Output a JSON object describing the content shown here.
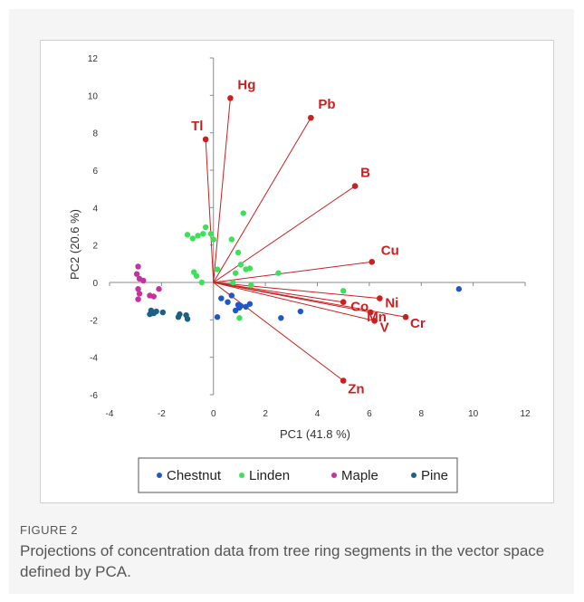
{
  "figure": {
    "label": "FIGURE 2",
    "caption": "Projections of concentration data from tree ring segments in the vector space defined by PCA."
  },
  "chart_data": {
    "type": "scatter",
    "xlabel": "PC1 (41.8 %)",
    "ylabel": "PC2 (20.6 %)",
    "xlim": [
      -4,
      12
    ],
    "ylim": [
      -6,
      12
    ],
    "xticks": [
      -4,
      -2,
      0,
      2,
      4,
      6,
      8,
      10,
      12
    ],
    "yticks": [
      -6,
      -4,
      -2,
      0,
      2,
      4,
      6,
      8,
      10,
      12
    ],
    "grid": false,
    "legend_position": "bottom",
    "loadings_color": "#cc1f1f",
    "loadings": [
      {
        "label": "Hg",
        "x": 0.65,
        "y": 9.85
      },
      {
        "label": "Tl",
        "x": -0.3,
        "y": 7.65
      },
      {
        "label": "Pb",
        "x": 3.75,
        "y": 8.8
      },
      {
        "label": "B",
        "x": 5.45,
        "y": 5.15
      },
      {
        "label": "Cu",
        "x": 6.1,
        "y": 1.1
      },
      {
        "label": "Ni",
        "x": 6.4,
        "y": -0.85
      },
      {
        "label": "Co",
        "x": 5.0,
        "y": -1.05
      },
      {
        "label": "Mn",
        "x": 6.05,
        "y": -1.6
      },
      {
        "label": "Cr",
        "x": 7.4,
        "y": -1.85
      },
      {
        "label": "V",
        "x": 6.2,
        "y": -2.05
      },
      {
        "label": "Zn",
        "x": 5.0,
        "y": -5.25
      }
    ],
    "series": [
      {
        "name": "Chestnut",
        "color": "#1f57c9",
        "points": [
          [
            9.45,
            -0.35
          ],
          [
            0.3,
            -0.85
          ],
          [
            0.7,
            -0.7
          ],
          [
            0.55,
            -1.05
          ],
          [
            0.95,
            -1.2
          ],
          [
            0.85,
            -1.5
          ],
          [
            1.05,
            -1.25
          ],
          [
            1.25,
            -1.3
          ],
          [
            1.4,
            -1.15
          ],
          [
            0.15,
            -1.85
          ],
          [
            2.6,
            -1.9
          ],
          [
            3.35,
            -1.55
          ],
          [
            1.0,
            -1.35
          ]
        ]
      },
      {
        "name": "Linden",
        "color": "#3ee05a",
        "points": [
          [
            -1.0,
            2.55
          ],
          [
            -0.8,
            2.35
          ],
          [
            -0.6,
            2.5
          ],
          [
            -0.4,
            2.6
          ],
          [
            -0.3,
            2.95
          ],
          [
            -0.1,
            2.6
          ],
          [
            0.0,
            2.3
          ],
          [
            1.15,
            3.7
          ],
          [
            0.7,
            2.3
          ],
          [
            0.95,
            1.6
          ],
          [
            -0.75,
            0.55
          ],
          [
            -0.65,
            0.35
          ],
          [
            0.15,
            0.7
          ],
          [
            0.85,
            0.5
          ],
          [
            1.05,
            0.95
          ],
          [
            1.25,
            0.7
          ],
          [
            1.4,
            0.75
          ],
          [
            2.5,
            0.5
          ],
          [
            0.75,
            0.0
          ],
          [
            1.45,
            -0.15
          ],
          [
            5.0,
            -0.45
          ],
          [
            1.0,
            -1.9
          ],
          [
            -0.45,
            0.0
          ]
        ]
      },
      {
        "name": "Maple",
        "color": "#c2339e",
        "points": [
          [
            -2.9,
            0.85
          ],
          [
            -2.95,
            0.45
          ],
          [
            -2.85,
            0.2
          ],
          [
            -2.7,
            0.1
          ],
          [
            -2.9,
            -0.35
          ],
          [
            -2.85,
            -0.6
          ],
          [
            -2.9,
            -0.9
          ],
          [
            -2.45,
            -0.7
          ],
          [
            -2.1,
            -0.35
          ],
          [
            -2.3,
            -0.75
          ]
        ]
      },
      {
        "name": "Pine",
        "color": "#1e5f86",
        "points": [
          [
            -2.4,
            -1.5
          ],
          [
            -2.3,
            -1.65
          ],
          [
            -2.2,
            -1.55
          ],
          [
            -1.95,
            -1.6
          ],
          [
            -2.45,
            -1.7
          ],
          [
            -1.3,
            -1.7
          ],
          [
            -1.05,
            -1.75
          ],
          [
            -1.0,
            -1.95
          ],
          [
            -1.35,
            -1.85
          ]
        ]
      }
    ]
  }
}
